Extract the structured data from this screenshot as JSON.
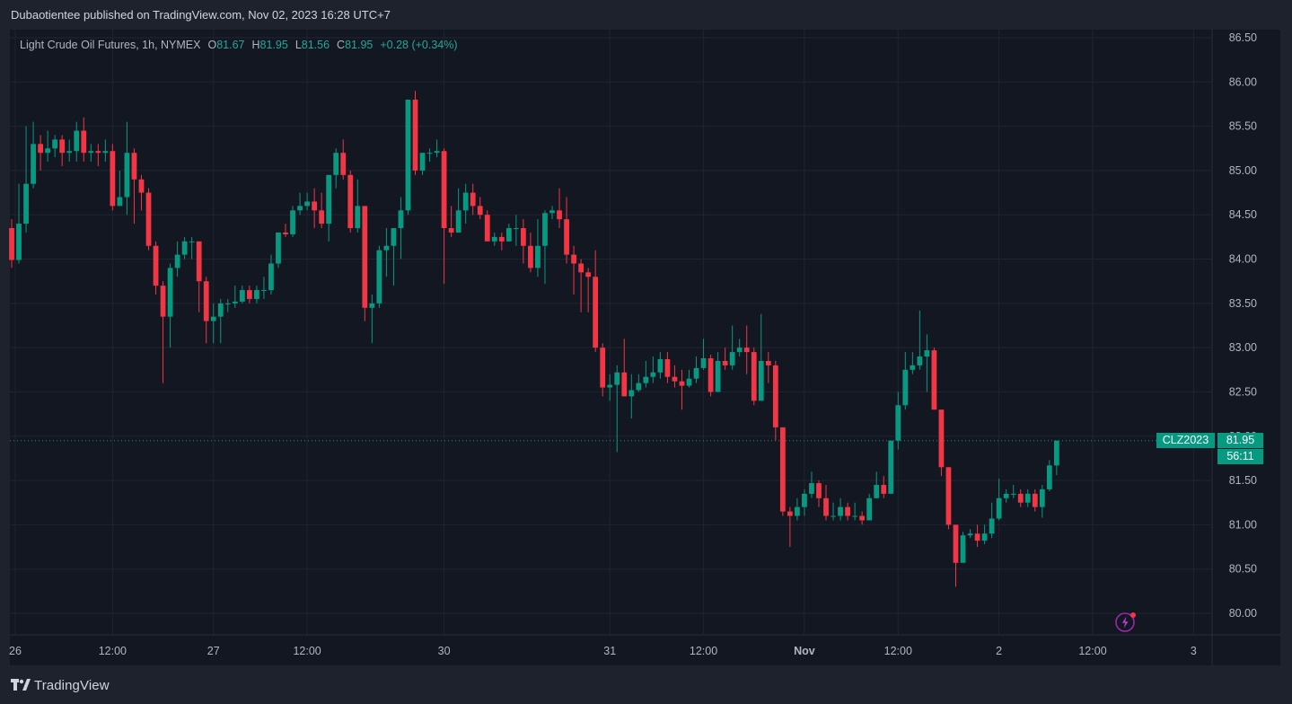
{
  "publish_line": "Dubaotientee published on TradingView.com, Nov 02, 2023 16:28 UTC+7",
  "legend": {
    "symbol": "Light Crude Oil Futures, 1h, NYMEX",
    "open_label": "O",
    "open": "81.67",
    "high_label": "H",
    "high": "81.95",
    "low_label": "L",
    "low": "81.56",
    "close_label": "C",
    "close": "81.95",
    "change": "+0.28 (+0.34%)"
  },
  "last_price": {
    "ticker": "CLZ2023",
    "price": "81.95",
    "countdown": "56:11"
  },
  "brand": "TradingView",
  "colors": {
    "up": "#089981",
    "down": "#f23645",
    "background": "#131722",
    "grid": "#1f2430"
  },
  "chart_data": {
    "type": "candlestick",
    "title": "Light Crude Oil Futures, 1h, NYMEX",
    "ylim": [
      79.95,
      86.6
    ],
    "y_ticks": [
      "80.00",
      "80.50",
      "81.00",
      "81.50",
      "82.00",
      "82.50",
      "83.00",
      "83.50",
      "84.00",
      "84.50",
      "85.00",
      "85.50",
      "86.00",
      "86.50"
    ],
    "x_ticks": [
      {
        "label": "26",
        "index": 0.5
      },
      {
        "label": "12:00",
        "index": 14
      },
      {
        "label": "27",
        "index": 28
      },
      {
        "label": "12:00",
        "index": 41
      },
      {
        "label": "30",
        "index": 60
      },
      {
        "label": "31",
        "index": 83
      },
      {
        "label": "12:00",
        "index": 96
      },
      {
        "label": "Nov",
        "index": 110
      },
      {
        "label": "12:00",
        "index": 123
      },
      {
        "label": "2",
        "index": 137
      },
      {
        "label": "12:00",
        "index": 150
      },
      {
        "label": "3",
        "index": 164
      }
    ],
    "last_price": 81.95,
    "candles": [
      [
        84.35,
        83.99,
        84.45,
        83.9
      ],
      [
        83.99,
        84.4,
        84.85,
        83.95
      ],
      [
        84.4,
        84.85,
        85.5,
        84.3
      ],
      [
        84.85,
        85.3,
        85.55,
        84.8
      ],
      [
        85.3,
        85.2,
        85.4,
        85.0
      ],
      [
        85.2,
        85.25,
        85.45,
        85.1
      ],
      [
        85.25,
        85.35,
        85.4,
        85.15
      ],
      [
        85.35,
        85.2,
        85.4,
        85.05
      ],
      [
        85.2,
        85.22,
        85.35,
        85.1
      ],
      [
        85.22,
        85.45,
        85.55,
        85.1
      ],
      [
        85.45,
        85.2,
        85.6,
        85.1
      ],
      [
        85.2,
        85.22,
        85.3,
        85.1
      ],
      [
        85.22,
        85.2,
        85.3,
        85.05
      ],
      [
        85.2,
        85.22,
        85.35,
        85.1
      ],
      [
        85.22,
        84.6,
        85.3,
        84.55
      ],
      [
        84.6,
        84.7,
        85.0,
        84.6
      ],
      [
        84.7,
        85.2,
        85.55,
        84.5
      ],
      [
        85.2,
        84.9,
        85.25,
        84.4
      ],
      [
        84.9,
        84.75,
        84.95,
        84.55
      ],
      [
        84.75,
        84.15,
        84.8,
        84.1
      ],
      [
        84.15,
        83.7,
        84.2,
        83.6
      ],
      [
        83.7,
        83.35,
        83.75,
        82.6
      ],
      [
        83.35,
        83.9,
        83.95,
        83.0
      ],
      [
        83.9,
        84.05,
        84.2,
        83.8
      ],
      [
        84.05,
        84.2,
        84.25,
        84.0
      ],
      [
        84.2,
        84.2,
        84.25,
        84.0
      ],
      [
        84.2,
        83.75,
        84.2,
        83.4
      ],
      [
        83.75,
        83.3,
        83.8,
        83.05
      ],
      [
        83.3,
        83.35,
        83.5,
        83.05
      ],
      [
        83.35,
        83.5,
        83.55,
        83.05
      ],
      [
        83.5,
        83.5,
        83.55,
        83.4
      ],
      [
        83.5,
        83.52,
        83.7,
        83.45
      ],
      [
        83.52,
        83.65,
        83.7,
        83.5
      ],
      [
        83.65,
        83.55,
        83.7,
        83.5
      ],
      [
        83.55,
        83.65,
        83.7,
        83.5
      ],
      [
        83.65,
        83.65,
        83.8,
        83.55
      ],
      [
        83.65,
        83.95,
        84.05,
        83.6
      ],
      [
        83.95,
        84.3,
        84.3,
        83.9
      ],
      [
        84.3,
        84.28,
        84.4,
        84.25
      ],
      [
        84.28,
        84.55,
        84.6,
        84.25
      ],
      [
        84.55,
        84.6,
        84.75,
        84.5
      ],
      [
        84.6,
        84.65,
        84.75,
        84.55
      ],
      [
        84.65,
        84.55,
        84.8,
        84.35
      ],
      [
        84.55,
        84.4,
        84.75,
        84.35
      ],
      [
        84.4,
        84.95,
        84.95,
        84.2
      ],
      [
        84.95,
        85.2,
        85.25,
        84.8
      ],
      [
        85.2,
        84.95,
        85.35,
        84.9
      ],
      [
        84.95,
        84.35,
        85.0,
        84.3
      ],
      [
        84.35,
        84.6,
        84.9,
        84.3
      ],
      [
        84.6,
        83.45,
        84.6,
        83.3
      ],
      [
        83.45,
        83.5,
        83.6,
        83.05
      ],
      [
        83.5,
        84.1,
        84.15,
        83.45
      ],
      [
        84.1,
        84.15,
        84.35,
        83.8
      ],
      [
        84.15,
        84.35,
        84.35,
        83.7
      ],
      [
        84.35,
        84.55,
        84.7,
        84.0
      ],
      [
        84.55,
        85.8,
        85.8,
        84.5
      ],
      [
        85.8,
        85.0,
        85.9,
        84.95
      ],
      [
        85.0,
        85.2,
        85.2,
        84.95
      ],
      [
        85.2,
        85.2,
        85.25,
        85.1
      ],
      [
        85.2,
        85.22,
        85.35,
        85.15
      ],
      [
        85.22,
        84.35,
        85.25,
        83.72
      ],
      [
        84.35,
        84.3,
        84.6,
        84.25
      ],
      [
        84.3,
        84.55,
        84.8,
        84.3
      ],
      [
        84.55,
        84.75,
        84.85,
        84.4
      ],
      [
        84.75,
        84.6,
        84.85,
        84.5
      ],
      [
        84.6,
        84.5,
        84.7,
        84.45
      ],
      [
        84.5,
        84.2,
        84.55,
        84.2
      ],
      [
        84.2,
        84.25,
        84.3,
        84.15
      ],
      [
        84.25,
        84.2,
        84.3,
        84.1
      ],
      [
        84.2,
        84.35,
        84.4,
        84.2
      ],
      [
        84.35,
        84.35,
        84.5,
        84.15
      ],
      [
        84.35,
        84.15,
        84.45,
        83.95
      ],
      [
        84.15,
        83.9,
        84.3,
        83.85
      ],
      [
        83.9,
        84.15,
        84.45,
        83.8
      ],
      [
        84.15,
        84.52,
        84.55,
        83.72
      ],
      [
        84.52,
        84.55,
        84.6,
        84.45
      ],
      [
        84.55,
        84.45,
        84.8,
        84.35
      ],
      [
        84.45,
        84.05,
        84.7,
        83.95
      ],
      [
        84.05,
        83.95,
        84.15,
        83.6
      ],
      [
        83.95,
        83.85,
        84.0,
        83.4
      ],
      [
        83.85,
        83.8,
        83.9,
        83.4
      ],
      [
        83.8,
        83.0,
        84.1,
        82.95
      ],
      [
        83.0,
        82.55,
        83.05,
        82.45
      ],
      [
        82.55,
        82.58,
        82.7,
        82.4
      ],
      [
        82.58,
        82.72,
        82.8,
        81.82
      ],
      [
        82.72,
        82.45,
        83.1,
        82.45
      ],
      [
        82.45,
        82.52,
        82.7,
        82.2
      ],
      [
        82.52,
        82.6,
        82.7,
        82.5
      ],
      [
        82.6,
        82.67,
        82.85,
        82.55
      ],
      [
        82.67,
        82.72,
        82.9,
        82.6
      ],
      [
        82.72,
        82.87,
        82.95,
        82.65
      ],
      [
        82.87,
        82.67,
        82.95,
        82.6
      ],
      [
        82.67,
        82.62,
        82.8,
        82.55
      ],
      [
        82.62,
        82.57,
        82.75,
        82.3
      ],
      [
        82.57,
        82.65,
        82.75,
        82.55
      ],
      [
        82.65,
        82.77,
        82.9,
        82.6
      ],
      [
        82.77,
        82.88,
        83.1,
        82.75
      ],
      [
        82.88,
        82.5,
        82.92,
        82.45
      ],
      [
        82.5,
        82.85,
        82.95,
        82.5
      ],
      [
        82.85,
        82.8,
        83.0,
        82.75
      ],
      [
        82.8,
        82.95,
        83.25,
        82.75
      ],
      [
        82.95,
        83.0,
        83.1,
        82.9
      ],
      [
        83.0,
        82.95,
        83.25,
        82.7
      ],
      [
        82.95,
        82.4,
        83.0,
        82.35
      ],
      [
        82.4,
        82.85,
        83.38,
        82.4
      ],
      [
        82.85,
        82.8,
        82.95,
        82.6
      ],
      [
        82.8,
        82.1,
        82.85,
        81.95
      ],
      [
        82.1,
        81.15,
        82.1,
        81.1
      ],
      [
        81.15,
        81.1,
        81.2,
        80.75
      ],
      [
        81.1,
        81.2,
        81.3,
        81.05
      ],
      [
        81.2,
        81.35,
        81.4,
        81.1
      ],
      [
        81.35,
        81.47,
        81.6,
        81.3
      ],
      [
        81.47,
        81.3,
        81.5,
        81.2
      ],
      [
        81.3,
        81.1,
        81.45,
        81.05
      ],
      [
        81.1,
        81.1,
        81.25,
        81.05
      ],
      [
        81.1,
        81.2,
        81.3,
        81.05
      ],
      [
        81.2,
        81.1,
        81.25,
        81.05
      ],
      [
        81.1,
        81.1,
        81.25,
        81.05
      ],
      [
        81.1,
        81.05,
        81.15,
        81.0
      ],
      [
        81.05,
        81.3,
        81.35,
        81.05
      ],
      [
        81.3,
        81.45,
        81.6,
        81.3
      ],
      [
        81.45,
        81.35,
        81.55,
        81.3
      ],
      [
        81.35,
        81.95,
        81.95,
        81.35
      ],
      [
        81.95,
        82.35,
        82.5,
        81.85
      ],
      [
        82.35,
        82.75,
        82.95,
        82.3
      ],
      [
        82.75,
        82.8,
        82.95,
        82.7
      ],
      [
        82.8,
        82.9,
        83.42,
        82.75
      ],
      [
        82.9,
        82.97,
        83.15,
        82.5
      ],
      [
        82.97,
        82.3,
        83.0,
        82.3
      ],
      [
        82.3,
        81.65,
        82.3,
        81.55
      ],
      [
        81.65,
        81.0,
        81.65,
        80.95
      ],
      [
        81.0,
        80.57,
        81.0,
        80.3
      ],
      [
        80.57,
        80.88,
        80.92,
        80.57
      ],
      [
        80.88,
        80.9,
        80.95,
        80.85
      ],
      [
        80.9,
        80.82,
        81.0,
        80.75
      ],
      [
        80.82,
        80.9,
        81.0,
        80.78
      ],
      [
        80.9,
        81.07,
        81.25,
        80.85
      ],
      [
        81.07,
        81.3,
        81.52,
        81.05
      ],
      [
        81.3,
        81.35,
        81.4,
        81.25
      ],
      [
        81.35,
        81.35,
        81.45,
        81.3
      ],
      [
        81.35,
        81.25,
        81.4,
        81.2
      ],
      [
        81.25,
        81.35,
        81.4,
        81.2
      ],
      [
        81.35,
        81.2,
        81.4,
        81.15
      ],
      [
        81.2,
        81.4,
        81.45,
        81.08
      ],
      [
        81.4,
        81.67,
        81.73,
        81.38
      ],
      [
        81.67,
        81.95,
        81.95,
        81.56
      ]
    ]
  }
}
